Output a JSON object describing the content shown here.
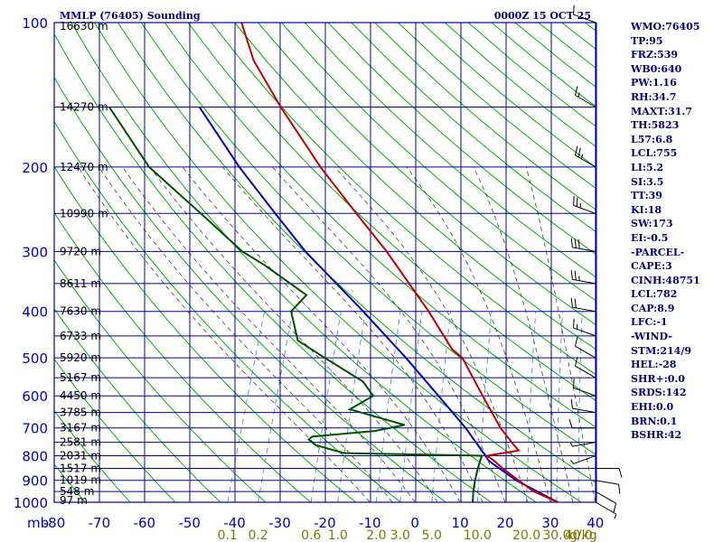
{
  "header": {
    "title": "MMLP (76405) Sounding",
    "time": "0000Z 15 OCT 25"
  },
  "indices": [
    "WMO:76405",
    "TP:95",
    "FRZ:539",
    "WB0:640",
    "PW:1.16",
    "RH:34.7",
    "MAXT:31.7",
    "TH:5823",
    "L57:6.8",
    "LCL:755",
    "LI:5.2",
    "SI:3.5",
    "TT:39",
    "KI:18",
    "SW:173",
    "EI:-0.5",
    "-PARCEL-",
    "CAPE:3",
    "CINH:48751",
    "LCL:782",
    "CAP:8.9",
    "LFC:-1",
    "-WIND-",
    "STM:214/9",
    "HEL:-28",
    "SHR+:0.0",
    "SRDS:142",
    "EHI:0.0",
    "BRN:0.1",
    "BSHR:42"
  ],
  "colors": {
    "grid": "#0000a0",
    "dry_adiabat": "#00b000",
    "moist_adiabat": "#404040",
    "mixing_ratio": "#4a8fd8",
    "temperature": "#c00000",
    "dewpoint": "#005000",
    "parcel": "#0000c0",
    "wind": "#000000"
  },
  "chart_data": {
    "type": "skew-t",
    "pressure_axis": {
      "unit_label": "mb",
      "levels": [
        100,
        200,
        300,
        400,
        500,
        600,
        700,
        800,
        900,
        1000
      ],
      "range": [
        100,
        1000
      ]
    },
    "temperature_axis": {
      "ticks": [
        -80,
        -70,
        -60,
        -50,
        -40,
        -30,
        -20,
        -10,
        0,
        10,
        20,
        30,
        40
      ],
      "tick_labels": [
        "-80",
        "-70",
        "-60",
        "-50",
        "-40",
        "-30",
        "-20",
        "-10",
        "0",
        "10",
        "20",
        "30",
        "40"
      ]
    },
    "mixing_ratio": {
      "labels": [
        "0.1",
        "0.2",
        "0.6",
        "1.0",
        "2.0",
        "3.0",
        "5.0",
        "10.0",
        "20.0",
        "30.0",
        "40.0"
      ],
      "unit": "g/kg",
      "values": [
        0.1,
        0.2,
        0.6,
        1.0,
        2.0,
        3.0,
        5.0,
        10.0,
        20.0,
        30.0,
        40.0
      ]
    },
    "heights": [
      {
        "p": 97,
        "label": "16630 m"
      },
      {
        "p": 150,
        "label": "14270 m"
      },
      {
        "p": 200,
        "label": "12470 m"
      },
      {
        "p": 250,
        "label": "10990 m"
      },
      {
        "p": 300,
        "label": "9720 m"
      },
      {
        "p": 350,
        "label": "8611 m"
      },
      {
        "p": 400,
        "label": "7630 m"
      },
      {
        "p": 450,
        "label": "6733 m"
      },
      {
        "p": 500,
        "label": "5920 m"
      },
      {
        "p": 550,
        "label": "5167 m"
      },
      {
        "p": 600,
        "label": "4450 m"
      },
      {
        "p": 650,
        "label": "3785 m"
      },
      {
        "p": 700,
        "label": "3167 m"
      },
      {
        "p": 750,
        "label": "2581 m"
      },
      {
        "p": 800,
        "label": "2031 m"
      },
      {
        "p": 850,
        "label": "1517 m"
      },
      {
        "p": 900,
        "label": "1019 m"
      },
      {
        "p": 950,
        "label": "548 m"
      },
      {
        "p": 1000,
        "label": "97 m"
      }
    ],
    "temperature": [
      {
        "p": 1000,
        "t": 31.7
      },
      {
        "p": 950,
        "t": 25.5
      },
      {
        "p": 900,
        "t": 21.0
      },
      {
        "p": 850,
        "t": 16.5
      },
      {
        "p": 820,
        "t": 14.0
      },
      {
        "p": 800,
        "t": 12.0
      },
      {
        "p": 780,
        "t": 18.5
      },
      {
        "p": 760,
        "t": 17.0
      },
      {
        "p": 700,
        "t": 12.5
      },
      {
        "p": 600,
        "t": 5.8
      },
      {
        "p": 500,
        "t": -2.0
      },
      {
        "p": 480,
        "t": -5.0
      },
      {
        "p": 400,
        "t": -13.5
      },
      {
        "p": 300,
        "t": -28.0
      },
      {
        "p": 250,
        "t": -38.0
      },
      {
        "p": 200,
        "t": -50.0
      },
      {
        "p": 150,
        "t": -64.0
      },
      {
        "p": 120,
        "t": -74.0
      },
      {
        "p": 100,
        "t": -80.0
      }
    ],
    "dewpoint": [
      {
        "p": 1000,
        "td": 12.8
      },
      {
        "p": 950,
        "td": 12.0
      },
      {
        "p": 900,
        "td": 11.4
      },
      {
        "p": 850,
        "td": 11.0
      },
      {
        "p": 800,
        "td": 10.8
      },
      {
        "p": 790,
        "td": -20.0
      },
      {
        "p": 760,
        "td": -27.0
      },
      {
        "p": 740,
        "td": -29.0
      },
      {
        "p": 730,
        "td": -28.5
      },
      {
        "p": 710,
        "td": -15.0
      },
      {
        "p": 690,
        "td": -9.0
      },
      {
        "p": 640,
        "td": -22.5
      },
      {
        "p": 600,
        "td": -18.5
      },
      {
        "p": 560,
        "td": -22.0
      },
      {
        "p": 500,
        "td": -32.5
      },
      {
        "p": 460,
        "td": -40.0
      },
      {
        "p": 400,
        "td": -44.0
      },
      {
        "p": 370,
        "td": -42.0
      },
      {
        "p": 320,
        "td": -54.0
      },
      {
        "p": 300,
        "td": -60.0
      },
      {
        "p": 250,
        "td": -72.5
      },
      {
        "p": 200,
        "td": -88.0
      },
      {
        "p": 150,
        "td": -102.0
      }
    ],
    "parcel": [
      {
        "p": 1000,
        "t": 31.7
      },
      {
        "p": 900,
        "t": 20.5
      },
      {
        "p": 820,
        "t": 12.8
      },
      {
        "p": 800,
        "t": 11.6
      },
      {
        "p": 700,
        "t": 4.8
      },
      {
        "p": 600,
        "t": -4.0
      },
      {
        "p": 500,
        "t": -14.5
      },
      {
        "p": 400,
        "t": -28.0
      },
      {
        "p": 300,
        "t": -46.0
      },
      {
        "p": 250,
        "t": -56.0
      },
      {
        "p": 200,
        "t": -68.0
      },
      {
        "p": 150,
        "t": -82.0
      }
    ],
    "wind_barbs": [
      {
        "p": 100,
        "dir": 290,
        "spd": 10
      },
      {
        "p": 150,
        "dir": 300,
        "spd": 15
      },
      {
        "p": 200,
        "dir": 300,
        "spd": 25
      },
      {
        "p": 250,
        "dir": 290,
        "spd": 25
      },
      {
        "p": 300,
        "dir": 280,
        "spd": 30
      },
      {
        "p": 350,
        "dir": 280,
        "spd": 25
      },
      {
        "p": 400,
        "dir": 280,
        "spd": 20
      },
      {
        "p": 450,
        "dir": 290,
        "spd": 15
      },
      {
        "p": 500,
        "dir": 300,
        "spd": 10
      },
      {
        "p": 550,
        "dir": 300,
        "spd": 10
      },
      {
        "p": 600,
        "dir": 290,
        "spd": 10
      },
      {
        "p": 650,
        "dir": 280,
        "spd": 10
      },
      {
        "p": 700,
        "dir": 270,
        "spd": 10
      },
      {
        "p": 750,
        "dir": 260,
        "spd": 5
      },
      {
        "p": 800,
        "dir": 250,
        "spd": 5
      },
      {
        "p": 850,
        "dir": 90,
        "spd": 10
      },
      {
        "p": 900,
        "dir": 100,
        "spd": 10
      },
      {
        "p": 950,
        "dir": 120,
        "spd": 10
      },
      {
        "p": 1000,
        "dir": 120,
        "spd": 5
      }
    ]
  }
}
